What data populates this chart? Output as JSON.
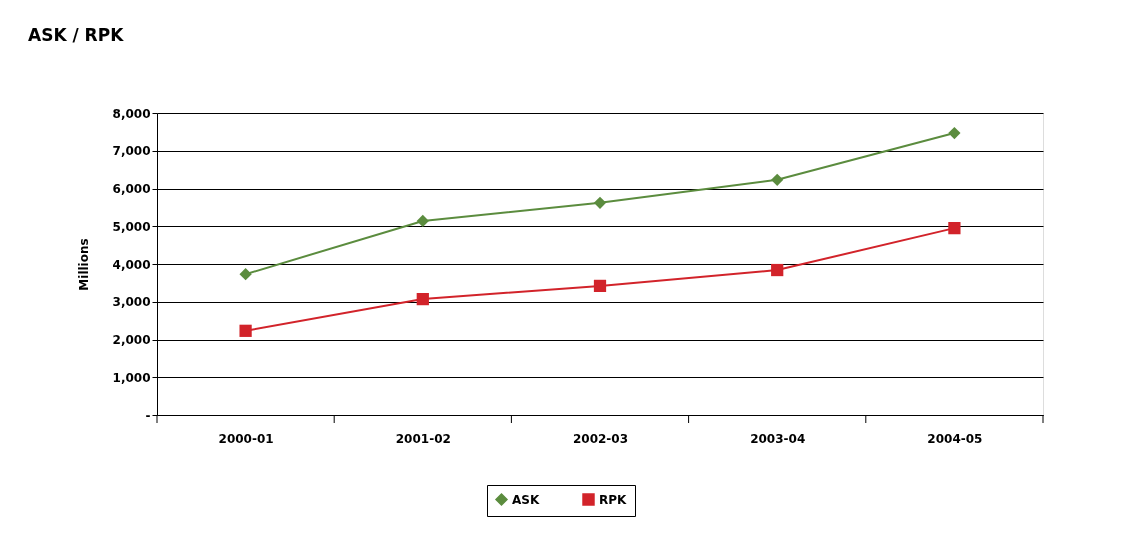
{
  "chart_data": {
    "type": "line",
    "title": "ASK / RPK",
    "ylabel": "Millions",
    "categories": [
      "2000-01",
      "2001-02",
      "2002-03",
      "2003-04",
      "2004-05"
    ],
    "series": [
      {
        "name": "ASK",
        "color": "#5b8c3e",
        "marker": "diamond",
        "values": [
          3730,
          5140,
          5620,
          6230,
          7470
        ]
      },
      {
        "name": "RPK",
        "color": "#d2232a",
        "marker": "square",
        "values": [
          2230,
          3070,
          3420,
          3840,
          4950
        ]
      }
    ],
    "ylim": [
      0,
      8000
    ],
    "yticks": [
      {
        "value": 0,
        "label": "-"
      },
      {
        "value": 1000,
        "label": "1,000"
      },
      {
        "value": 2000,
        "label": "2,000"
      },
      {
        "value": 3000,
        "label": "3,000"
      },
      {
        "value": 4000,
        "label": "4,000"
      },
      {
        "value": 5000,
        "label": "5,000"
      },
      {
        "value": 6000,
        "label": "6,000"
      },
      {
        "value": 7000,
        "label": "7,000"
      },
      {
        "value": 8000,
        "label": "8,000"
      }
    ],
    "grid": "y",
    "legend": "bottom",
    "line_style": "solid"
  }
}
